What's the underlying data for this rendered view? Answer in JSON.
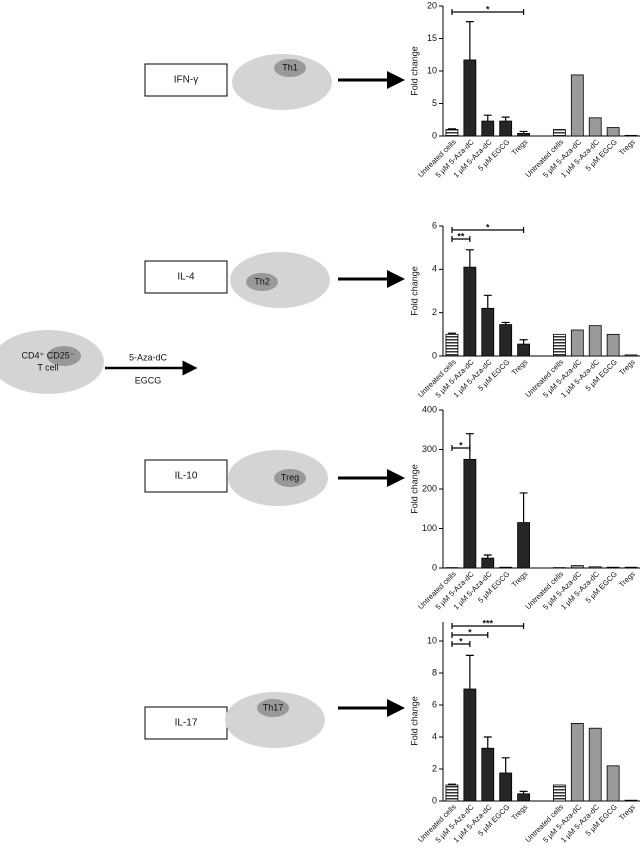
{
  "diagram": {
    "source_cell": [
      "CD4⁺ CD25⁻",
      "T cell"
    ],
    "treatments": [
      "5-Aza-dC",
      "EGCG"
    ],
    "rows": [
      {
        "cytokine": "IFN-γ",
        "cell": "Th1"
      },
      {
        "cytokine": "IL-4",
        "cell": "Th2"
      },
      {
        "cytokine": "IL-10",
        "cell": "Treg"
      },
      {
        "cytokine": "IL-17",
        "cell": "Th17"
      }
    ]
  },
  "chart_data": [
    {
      "type": "bar",
      "ylabel": "Fold change",
      "categories": [
        "Untreated cells",
        "5 µM 5-Aza-dC",
        "1 µM 5-Aza-dC",
        "5 µM EGCG",
        "Tregs",
        null,
        "Untreated cells",
        "5 µM 5-Aza-dC",
        "1 µM 5-Aza-dC",
        "5 µM EGCG",
        "Tregs"
      ],
      "values": [
        1.0,
        11.7,
        2.3,
        2.3,
        0.4,
        null,
        1.0,
        9.4,
        2.8,
        1.3,
        0.1
      ],
      "errors": [
        0.1,
        5.9,
        0.9,
        0.6,
        0.3,
        null,
        null,
        null,
        null,
        null,
        null
      ],
      "colors": [
        "hatch",
        "#262626",
        "#262626",
        "#262626",
        "#262626",
        null,
        "hatch",
        "#9a9a9a",
        "#9a9a9a",
        "#9a9a9a",
        "#9a9a9a"
      ],
      "ylim": [
        0,
        20
      ],
      "yticks": [
        0,
        5,
        10,
        15,
        20
      ],
      "annotations": [
        {
          "label": "*",
          "between": [
            0,
            4
          ]
        }
      ]
    },
    {
      "type": "bar",
      "ylabel": "Fold change",
      "categories": [
        "Untreated cells",
        "5 µM 5-Aza-dC",
        "1 µM 5-Aza-dC",
        "5 µM EGCG",
        "Tregs",
        null,
        "Untreated cells",
        "5 µM 5-Aza-dC",
        "1 µM 5-Aza-dC",
        "5 µM EGCG",
        "Tregs"
      ],
      "values": [
        1.0,
        4.1,
        2.2,
        1.45,
        0.55,
        null,
        1.0,
        1.2,
        1.4,
        1.0,
        0.05
      ],
      "errors": [
        0.05,
        0.8,
        0.6,
        0.1,
        0.2,
        null,
        null,
        null,
        null,
        null,
        null
      ],
      "colors": [
        "hatch",
        "#262626",
        "#262626",
        "#262626",
        "#262626",
        null,
        "hatch",
        "#9a9a9a",
        "#9a9a9a",
        "#9a9a9a",
        "#9a9a9a"
      ],
      "ylim": [
        0,
        6
      ],
      "yticks": [
        0,
        2,
        4,
        6
      ],
      "annotations": [
        {
          "label": "*",
          "between": [
            0,
            4
          ]
        },
        {
          "label": "**",
          "between": [
            0,
            1
          ]
        }
      ]
    },
    {
      "type": "bar",
      "ylabel": "Fold change",
      "categories": [
        "Untreated cells",
        "5 µM 5-Aza-dC",
        "1 µM 5-Aza-dC",
        "5 µM EGCG",
        "Tregs",
        null,
        "Untreated cells",
        "5 µM 5-Aza-dC",
        "1 µM 5-Aza-dC",
        "5 µM EGCG",
        "Tregs"
      ],
      "values": [
        1,
        275,
        25,
        2,
        115,
        null,
        1,
        6,
        3,
        2,
        2
      ],
      "errors": [
        null,
        65,
        8,
        null,
        75,
        null,
        null,
        null,
        null,
        null,
        null
      ],
      "colors": [
        "hatch",
        "#262626",
        "#262626",
        "#262626",
        "#262626",
        null,
        "hatch",
        "#9a9a9a",
        "#9a9a9a",
        "#9a9a9a",
        "#9a9a9a"
      ],
      "ylim": [
        0,
        400
      ],
      "yticks": [
        0,
        100,
        200,
        300,
        400
      ],
      "annotations": [
        {
          "label": "*",
          "between": [
            0,
            1
          ]
        }
      ]
    },
    {
      "type": "bar",
      "ylabel": "Fold change",
      "categories": [
        "Untreated cells",
        "5 µM 5-Aza-dC",
        "1 µM 5-Aza-dC",
        "5 µM EGCG",
        "Tregs",
        null,
        "Untreated cells",
        "5 µM 5-Aza-dC",
        "1 µM 5-Aza-dC",
        "5 µM EGCG",
        "Tregs"
      ],
      "values": [
        1.0,
        7.0,
        3.3,
        1.75,
        0.45,
        null,
        1.0,
        4.85,
        4.55,
        2.2,
        0.05
      ],
      "errors": [
        0.05,
        2.1,
        0.7,
        0.95,
        0.15,
        null,
        null,
        null,
        null,
        null,
        null
      ],
      "colors": [
        "hatch",
        "#262626",
        "#262626",
        "#262626",
        "#262626",
        null,
        "hatch",
        "#9a9a9a",
        "#9a9a9a",
        "#9a9a9a",
        "#9a9a9a"
      ],
      "ylim": [
        0,
        10
      ],
      "yticks": [
        0,
        2,
        4,
        6,
        8,
        10
      ],
      "annotations": [
        {
          "label": "***",
          "between": [
            0,
            4
          ]
        },
        {
          "label": "*",
          "between": [
            0,
            2
          ]
        },
        {
          "label": "*",
          "between": [
            0,
            1
          ]
        }
      ]
    }
  ]
}
